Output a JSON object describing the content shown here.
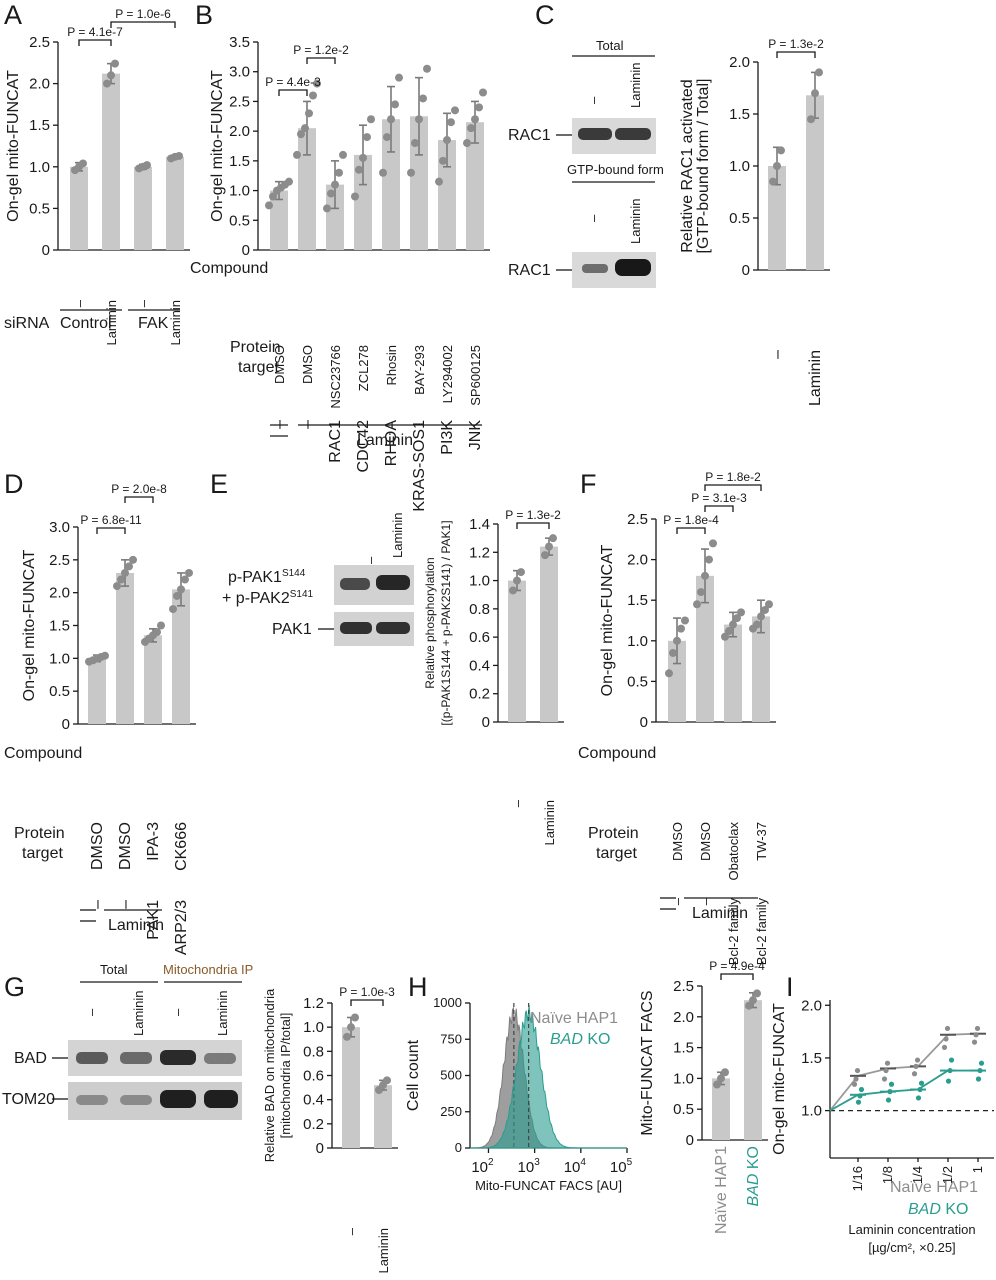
{
  "panels": {
    "A": {
      "letter": "A"
    },
    "B": {
      "letter": "B"
    },
    "C": {
      "letter": "C"
    },
    "D": {
      "letter": "D"
    },
    "E": {
      "letter": "E"
    },
    "F": {
      "letter": "F"
    },
    "G": {
      "letter": "G"
    },
    "H": {
      "letter": "H"
    },
    "I": {
      "letter": "I"
    }
  },
  "labels": {
    "dash": "–",
    "laminin": "Laminin",
    "siRNA": "siRNA",
    "control": "Control",
    "fak": "FAK",
    "compound": "Compound",
    "protein_target": [
      "Protein",
      "target"
    ],
    "total": "Total",
    "gtp_bound": "GTP-bound form",
    "rac1": "RAC1",
    "pak_phospho_1": "p-PAK1",
    "pak_phospho_1_sup": "S144",
    "pak_phospho_2": "+ p-PAK2",
    "pak_phospho_2_sup": "S141",
    "pak1": "PAK1",
    "mito_ip": "Mitochondria IP",
    "bad": "BAD",
    "tom20": "TOM20",
    "naive": "Naïve HAP1",
    "bad_ko_italic": "BAD",
    "bad_ko_suffix": " KO"
  },
  "chart_data": [
    {
      "panel": "A",
      "type": "bar",
      "ylabel": "On-gel mito-FUNCAT",
      "ylim": [
        0,
        2.5
      ],
      "yticks": [
        "0",
        "0.5",
        "1.0",
        "1.5",
        "2.0",
        "2.5"
      ],
      "categories": [
        "–",
        "Laminin",
        "–",
        "Laminin"
      ],
      "values": [
        1.0,
        2.12,
        1.0,
        1.12
      ],
      "errors": [
        0.05,
        0.12,
        0.03,
        0.02
      ],
      "points": [
        [
          0.96,
          1.0,
          1.04
        ],
        [
          2.0,
          2.1,
          2.24
        ],
        [
          0.98,
          1.0,
          1.02
        ],
        [
          1.1,
          1.12,
          1.13
        ]
      ],
      "pvalues": [
        {
          "text": "P = 4.1e-7",
          "from": 0,
          "to": 1
        },
        {
          "text": "P = 1.0e-6",
          "from": 1,
          "to": 3
        }
      ]
    },
    {
      "panel": "B",
      "type": "bar",
      "ylabel": "On-gel mito-FUNCAT",
      "ylim": [
        0,
        3.5
      ],
      "yticks": [
        "0",
        "0.5",
        "1.0",
        "1.5",
        "2.0",
        "2.5",
        "3.0",
        "3.5"
      ],
      "compounds": [
        "DMSO",
        "DMSO",
        "NSC23766",
        "ZCL278",
        "Rhosin",
        "BAY-293",
        "LY294002",
        "SP600125"
      ],
      "targets": [
        "–",
        "–",
        "RAC1",
        "CDC42",
        "RHOA",
        "KRAS-SOS1",
        "PI3K",
        "JNK"
      ],
      "values": [
        1.0,
        2.05,
        1.1,
        1.6,
        2.2,
        2.25,
        1.85,
        2.15
      ],
      "errors": [
        0.15,
        0.45,
        0.4,
        0.5,
        0.55,
        0.65,
        0.45,
        0.35
      ],
      "points": [
        [
          0.75,
          0.9,
          1.0,
          1.05,
          1.1,
          1.15
        ],
        [
          1.6,
          1.95,
          2.05,
          2.3,
          2.6,
          2.8
        ],
        [
          0.7,
          0.95,
          1.1,
          1.3,
          1.6
        ],
        [
          0.9,
          1.35,
          1.55,
          1.9,
          2.2
        ],
        [
          1.3,
          1.9,
          2.2,
          2.45,
          2.9
        ],
        [
          1.3,
          1.8,
          2.2,
          2.55,
          3.05
        ],
        [
          1.15,
          1.5,
          1.85,
          2.15,
          2.35
        ],
        [
          1.8,
          2.05,
          2.2,
          2.4,
          2.65
        ]
      ],
      "pvalues": [
        {
          "text": "P = 4.4e-3",
          "from": 0,
          "to": 1
        },
        {
          "text": "P = 1.2e-2",
          "from": 1,
          "to": 2
        }
      ]
    },
    {
      "panel": "C",
      "type": "bar",
      "ylabel": "Relative RAC1 activated [GTP-bound form / Total]",
      "ylim": [
        0,
        2.0
      ],
      "yticks": [
        "0",
        "0.5",
        "1.0",
        "1.5",
        "2.0"
      ],
      "categories": [
        "–",
        "Laminin"
      ],
      "values": [
        1.0,
        1.68
      ],
      "errors": [
        0.18,
        0.22
      ],
      "points": [
        [
          0.85,
          1.0,
          1.15
        ],
        [
          1.45,
          1.7,
          1.9
        ]
      ],
      "pvalues": [
        {
          "text": "P = 1.3e-2",
          "from": 0,
          "to": 1
        }
      ]
    },
    {
      "panel": "D",
      "type": "bar",
      "ylabel": "On-gel mito-FUNCAT",
      "ylim": [
        0,
        3.0
      ],
      "yticks": [
        "0",
        "0.5",
        "1.0",
        "1.5",
        "2.0",
        "2.5",
        "3.0"
      ],
      "compounds": [
        "DMSO",
        "DMSO",
        "IPA-3",
        "CK666"
      ],
      "targets": [
        "–",
        "–",
        "PAK1",
        "ARP2/3"
      ],
      "values": [
        1.0,
        2.3,
        1.35,
        2.05
      ],
      "errors": [
        0.05,
        0.2,
        0.1,
        0.25
      ],
      "points": [
        [
          0.95,
          0.97,
          1.0,
          1.02,
          1.04
        ],
        [
          2.1,
          2.2,
          2.3,
          2.4,
          2.5
        ],
        [
          1.25,
          1.3,
          1.35,
          1.4,
          1.5
        ],
        [
          1.75,
          1.95,
          2.05,
          2.2,
          2.3
        ]
      ],
      "pvalues": [
        {
          "text": "P = 6.8e-11",
          "from": 0,
          "to": 1
        },
        {
          "text": "P = 2.0e-8",
          "from": 1,
          "to": 2
        }
      ]
    },
    {
      "panel": "E",
      "type": "bar",
      "ylabel": "Relative phosphorylation [(p-PAK1S144 + p-PAK2S141) / PAK1]",
      "ylim": [
        0,
        1.4
      ],
      "yticks": [
        "0",
        "0.2",
        "0.4",
        "0.6",
        "0.8",
        "1.0",
        "1.2",
        "1.4"
      ],
      "categories": [
        "–",
        "Laminin"
      ],
      "values": [
        1.0,
        1.24
      ],
      "errors": [
        0.07,
        0.06
      ],
      "points": [
        [
          0.93,
          1.0,
          1.06
        ],
        [
          1.18,
          1.24,
          1.3
        ]
      ],
      "pvalues": [
        {
          "text": "P = 1.3e-2",
          "from": 0,
          "to": 1
        }
      ]
    },
    {
      "panel": "F",
      "type": "bar",
      "ylabel": "On-gel mito-FUNCAT",
      "ylim": [
        0,
        2.5
      ],
      "yticks": [
        "0",
        "0.5",
        "1.0",
        "1.5",
        "2.0",
        "2.5"
      ],
      "compounds": [
        "DMSO",
        "DMSO",
        "Obatoclax",
        "TW-37"
      ],
      "targets": [
        "–",
        "–",
        "Bcl-2 family",
        "Bcl-2 family"
      ],
      "values": [
        1.0,
        1.8,
        1.2,
        1.3
      ],
      "errors": [
        0.28,
        0.33,
        0.15,
        0.2
      ],
      "points": [
        [
          0.6,
          0.85,
          1.0,
          1.15,
          1.25
        ],
        [
          1.45,
          1.6,
          1.8,
          2.0,
          2.2
        ],
        [
          1.05,
          1.12,
          1.2,
          1.28,
          1.35
        ],
        [
          1.15,
          1.2,
          1.3,
          1.38,
          1.45
        ]
      ],
      "pvalues": [
        {
          "text": "P = 1.8e-4",
          "from": 0,
          "to": 1
        },
        {
          "text": "P = 3.1e-3",
          "from": 1,
          "to": 2
        },
        {
          "text": "P = 1.8e-2",
          "from": 1,
          "to": 3
        }
      ]
    },
    {
      "panel": "G",
      "type": "bar",
      "ylabel": "Relative BAD on mitochondria [mitochondria IP/total]",
      "ylim": [
        0,
        1.2
      ],
      "yticks": [
        "0",
        "0.2",
        "0.4",
        "0.6",
        "0.8",
        "1.0",
        "1.2"
      ],
      "categories": [
        "–",
        "Laminin"
      ],
      "values": [
        1.0,
        0.52
      ],
      "errors": [
        0.08,
        0.04
      ],
      "points": [
        [
          0.92,
          1.0,
          1.08
        ],
        [
          0.48,
          0.52,
          0.56
        ]
      ],
      "pvalues": [
        {
          "text": "P = 1.0e-3",
          "from": 0,
          "to": 1
        }
      ]
    },
    {
      "panel": "H",
      "type": "area",
      "ylabel": "Cell count",
      "xlabel": "Mito-FUNCAT FACS [AU]",
      "ylim": [
        0,
        1000
      ],
      "yticks": [
        "0",
        "250",
        "500",
        "750",
        "1000"
      ],
      "xticks_exp": [
        "2",
        "3",
        "4",
        "5"
      ],
      "xticks_base": "10",
      "series": [
        {
          "name": "Naïve HAP1",
          "peak_log10": 2.55,
          "width": 0.22,
          "color": "#7d7d7d"
        },
        {
          "name": "BAD KO",
          "peak_log10": 2.87,
          "width": 0.26,
          "color": "#2a9d8f"
        }
      ]
    },
    {
      "panel": "H2",
      "type": "bar",
      "ylabel": "Mito-FUNCAT FACS",
      "ylim": [
        0,
        2.5
      ],
      "yticks": [
        "0",
        "0.5",
        "1.0",
        "1.5",
        "2.0",
        "2.5"
      ],
      "categories": [
        "Naïve HAP1",
        "BAD KO"
      ],
      "values": [
        1.0,
        2.27
      ],
      "errors": [
        0.1,
        0.12
      ],
      "points": [
        [
          0.9,
          1.0,
          1.1
        ],
        [
          2.18,
          2.27,
          2.38
        ]
      ],
      "pvalues": [
        {
          "text": "P = 4.9e-4",
          "from": 0,
          "to": 1
        }
      ]
    },
    {
      "panel": "I",
      "type": "line",
      "ylabel": "On-gel mito-FUNCAT",
      "xlabel": "Laminin concentration",
      "xlabel2": "[µg/cm², ×0.25]",
      "ylim": [
        0,
        2.0
      ],
      "yticks": [
        "1.0",
        "1.5",
        "2.0"
      ],
      "categories": [
        "1/16",
        "1/8",
        "1/4",
        "1/2",
        "1"
      ],
      "series": [
        {
          "name": "Naïve HAP1",
          "color": "#9a9a9a",
          "values": [
            1.33,
            1.4,
            1.42,
            1.72,
            1.73
          ],
          "points": [
            [
              1.25,
              1.3,
              1.38
            ],
            [
              1.3,
              1.38,
              1.45
            ],
            [
              1.35,
              1.42,
              1.48
            ],
            [
              1.6,
              1.68,
              1.78
            ],
            [
              1.65,
              1.72,
              1.78
            ]
          ]
        },
        {
          "name": "BAD KO",
          "color": "#2a9d8f",
          "values": [
            1.15,
            1.18,
            1.2,
            1.38,
            1.38
          ],
          "points": [
            [
              1.08,
              1.14,
              1.2
            ],
            [
              1.1,
              1.18,
              1.25
            ],
            [
              1.12,
              1.2,
              1.26
            ],
            [
              1.28,
              1.38,
              1.48
            ],
            [
              1.3,
              1.38,
              1.45
            ]
          ]
        }
      ]
    }
  ]
}
